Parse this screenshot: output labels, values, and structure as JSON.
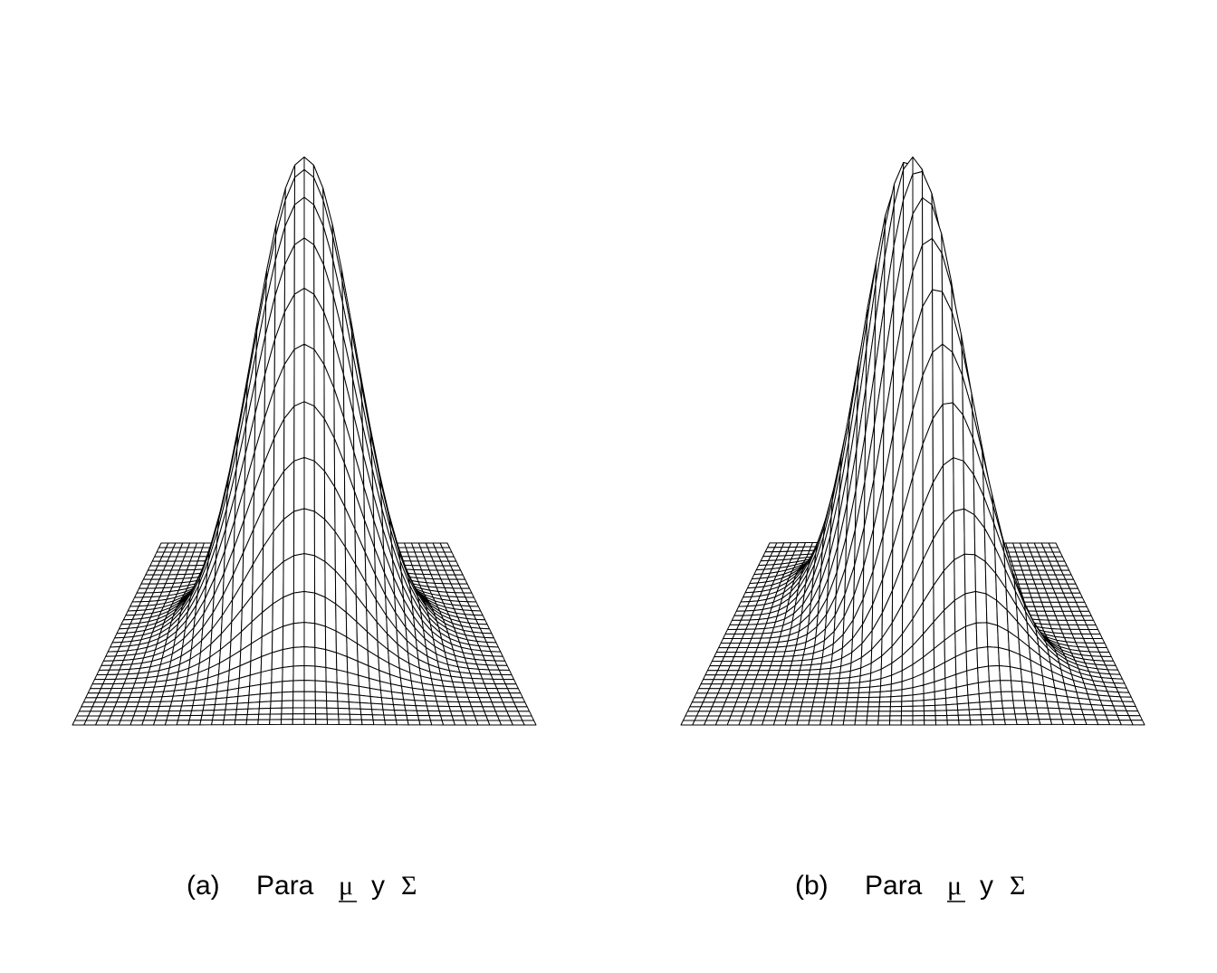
{
  "chart_data": [
    {
      "type": "surface",
      "panel": "(a)",
      "caption_prefix": "Para",
      "mu_symbol": "μ",
      "connector": "y",
      "sigma_symbol": "Σ",
      "grid_lines": 41,
      "mesh": {
        "x_range": [
          -2.6,
          2.6
        ],
        "y_range": [
          -2.6,
          2.6
        ]
      },
      "density": {
        "mean": [
          0,
          0
        ],
        "var_x": 0.5,
        "var_y": 0.5,
        "cov": 0.0
      },
      "grid": true,
      "axes": false
    },
    {
      "type": "surface",
      "panel": "(b)",
      "caption_prefix": "Para",
      "mu_symbol": "μ",
      "connector": "y",
      "sigma_symbol": "Σ",
      "grid_lines": 41,
      "mesh": {
        "x_range": [
          -2.6,
          2.6
        ],
        "y_range": [
          -2.6,
          2.6
        ]
      },
      "density": {
        "mean": [
          0,
          0
        ],
        "var_x": 0.5,
        "var_y": 0.5,
        "cov": 0.3
      },
      "grid": true,
      "axes": false
    }
  ],
  "colors": {
    "line": "#000000",
    "face": "#ffffff"
  }
}
